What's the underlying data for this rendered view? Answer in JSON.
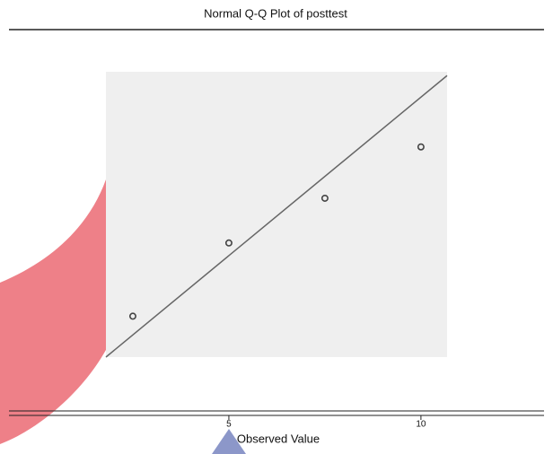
{
  "chart_data": {
    "type": "scatter",
    "title": "Normal Q-Q Plot of posttest",
    "x_label": "Observed Value",
    "series": [
      {
        "color": "#444444",
        "x": [
          2.5,
          5,
          7.5,
          10
        ],
        "values": [
          -1.07,
          -0.3,
          0.17,
          0.71
        ]
      }
    ],
    "reference_line": {
      "color": "#666666",
      "x": [
        1.8,
        10.68
      ],
      "values": [
        -1.5,
        1.46
      ]
    },
    "xlim": [
      1.8,
      10.68
    ],
    "ylim": [
      -1.5,
      1.5
    ],
    "xticks": [
      5,
      10
    ],
    "background": "#efefef"
  }
}
